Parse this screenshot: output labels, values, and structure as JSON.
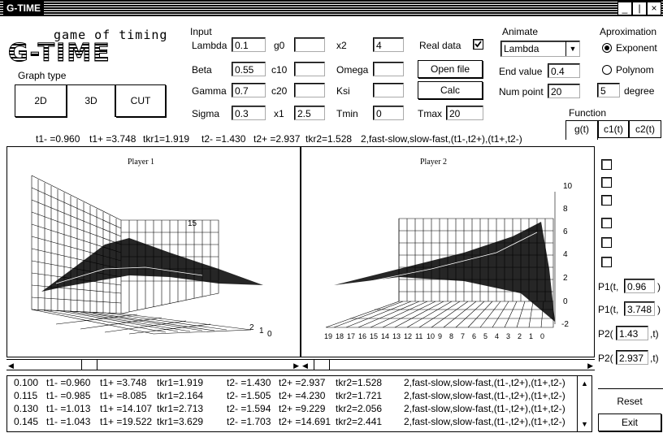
{
  "window": {
    "title": "G-TIME",
    "min_btn": "_",
    "max_btn": "|",
    "close_btn": "×"
  },
  "logo": {
    "line1": "game of timing",
    "line2": "G-TIME"
  },
  "graph_type": {
    "label": "Graph type",
    "buttons": [
      "2D",
      "3D",
      "CUT"
    ]
  },
  "input": {
    "section_label": "Input",
    "lambda": {
      "label": "Lambda",
      "value": "0.1"
    },
    "beta": {
      "label": "Beta",
      "value": "0.55"
    },
    "gamma": {
      "label": "Gamma",
      "value": "0.7"
    },
    "sigma": {
      "label": "Sigma",
      "value": "0.3"
    },
    "g0": {
      "label": "g0",
      "value": ""
    },
    "c10": {
      "label": "c10",
      "value": ""
    },
    "c20": {
      "label": "c20",
      "value": ""
    },
    "x1": {
      "label": "x1",
      "value": "2.5"
    },
    "x2": {
      "label": "x2",
      "value": "4"
    },
    "omega": {
      "label": "Omega",
      "value": ""
    },
    "ksi": {
      "label": "Ksi",
      "value": ""
    },
    "tmin": {
      "label": "Tmin",
      "value": "0"
    },
    "tmax": {
      "label": "Tmax",
      "value": "20"
    }
  },
  "real_data": {
    "label": "Real data",
    "checked": true
  },
  "open_file": "Open file",
  "calc": "Calc",
  "animate": {
    "label": "Animate",
    "selected": "Lambda",
    "end_value_label": "End value",
    "end_value": "0.4",
    "num_point_label": "Num point",
    "num_point": "20"
  },
  "aproximation": {
    "label": "Aproximation",
    "exponent": "Exponent",
    "polynom": "Polynom",
    "selected": "Exponent",
    "degree_value": "5",
    "degree_label": "degree"
  },
  "function": {
    "label": "Function",
    "tabs": [
      "g(t)",
      "c1(t)",
      "c2(t)"
    ],
    "selected": "g(t)"
  },
  "summary": {
    "t1m": "t1- =0.960",
    "t1p": "t1+ =3.748",
    "tkr1": "tkr1=1.919",
    "t2m": "t2- =1.430",
    "t2p": "t2+ =2.937",
    "tkr2": "tkr2=1.528",
    "strategy": "2,fast-slow,slow-fast,(t1-,t2+),(t1+,t2-)"
  },
  "player1": {
    "title": "Player 1",
    "axis_ticks": [
      "15",
      "2",
      "1",
      "0"
    ]
  },
  "player2": {
    "title": "Player 2",
    "z_ticks": [
      "10",
      "8",
      "6",
      "4",
      "2",
      "0",
      "-2"
    ],
    "x_ticks": [
      "19",
      "18",
      "17",
      "16",
      "15",
      "14",
      "13",
      "12",
      "11",
      "10",
      "9",
      "8",
      "7",
      "6",
      "5",
      "4",
      "3",
      "2",
      "1",
      "0"
    ]
  },
  "p_fields": {
    "p1a": {
      "prefix": "P1(t,",
      "value": "0.96",
      "suffix": ")"
    },
    "p1b": {
      "prefix": "P1(t,",
      "value": "3.748",
      "suffix": ")"
    },
    "p2a": {
      "prefix": "P2(",
      "value": "1.43",
      "suffix": ",t)"
    },
    "p2b": {
      "prefix": "P2(",
      "value": "2.937",
      "suffix": ",t)"
    }
  },
  "results": [
    [
      "0.100",
      "t1- =0.960",
      "t1+ =3.748",
      "tkr1=1.919",
      "t2- =1.430",
      "t2+ =2.937",
      "tkr2=1.528",
      "2,fast-slow,slow-fast,(t1-,t2+),(t1+,t2-)"
    ],
    [
      "0.115",
      "t1- =0.985",
      "t1+ =8.085",
      "tkr1=2.164",
      "t2- =1.505",
      "t2+ =4.230",
      "tkr2=1.721",
      "2,fast-slow,slow-fast,(t1-,t2+),(t1+,t2-)"
    ],
    [
      "0.130",
      "t1- =1.013",
      "t1+ =14.107",
      "tkr1=2.713",
      "t2- =1.594",
      "t2+ =9.229",
      "tkr2=2.056",
      "2,fast-slow,slow-fast,(t1-,t2+),(t1+,t2-)"
    ],
    [
      "0.145",
      "t1- =1.043",
      "t1+ =19.522",
      "tkr1=3.629",
      "t2- =1.703",
      "t2+ =14.691",
      "tkr2=2.441",
      "2,fast-slow,slow-fast,(t1-,t2+),(t1+,t2-)"
    ]
  ],
  "reset": "Reset",
  "exit": "Exit"
}
